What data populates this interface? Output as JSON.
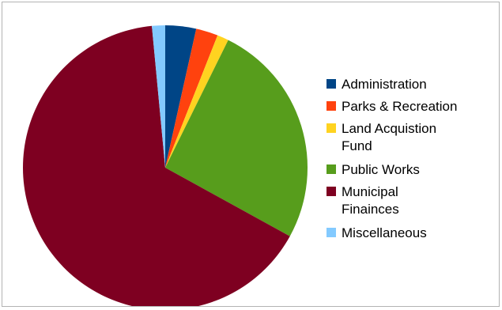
{
  "chart_data": {
    "type": "pie",
    "slices": [
      {
        "label": "Administration",
        "value": 3.5,
        "color": "#004586"
      },
      {
        "label": "Parks & Recreation",
        "value": 2.5,
        "color": "#ff420e"
      },
      {
        "label": "Land Acquistion Fund",
        "value": 1.3,
        "color": "#ffd320"
      },
      {
        "label": "Public Works",
        "value": 25.7,
        "color": "#579d1c"
      },
      {
        "label": "Municipal Finainces",
        "value": 65.5,
        "color": "#7e0021"
      },
      {
        "label": "Miscellaneous",
        "value": 1.5,
        "color": "#83caff"
      }
    ],
    "start_angle_deg": 0,
    "direction": "clockwise",
    "legend_position": "right"
  }
}
